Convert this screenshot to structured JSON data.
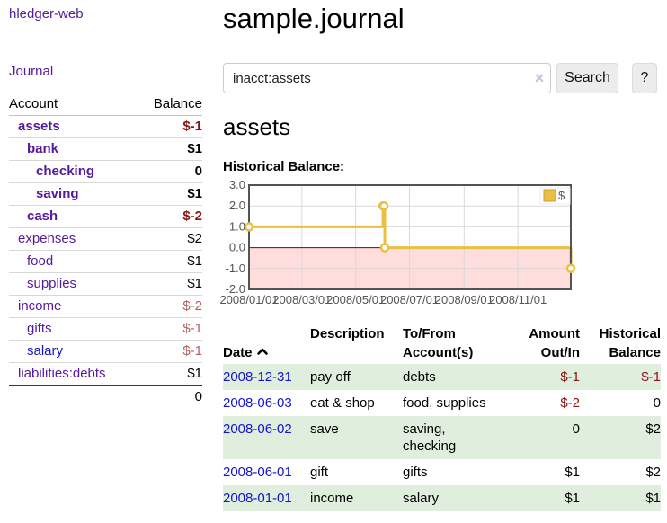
{
  "app": {
    "brand": "hledger-web",
    "nav": {
      "journal": "Journal"
    }
  },
  "sidebar": {
    "headers": {
      "account": "Account",
      "balance": "Balance"
    },
    "accounts": [
      {
        "name": "assets",
        "balance": "$-1"
      },
      {
        "name": "bank",
        "balance": "$1"
      },
      {
        "name": "checking",
        "balance": "0"
      },
      {
        "name": "saving",
        "balance": "$1"
      },
      {
        "name": "cash",
        "balance": "$-2"
      },
      {
        "name": "expenses",
        "balance": "$2"
      },
      {
        "name": "food",
        "balance": "$1"
      },
      {
        "name": "supplies",
        "balance": "$1"
      },
      {
        "name": "income",
        "balance": "$-2"
      },
      {
        "name": "gifts",
        "balance": "$-1"
      },
      {
        "name": "salary",
        "balance": "$-1"
      },
      {
        "name": "liabilities:debts",
        "balance": "$1"
      }
    ],
    "total": "0"
  },
  "main": {
    "title": "sample.journal",
    "search": {
      "value": "inacct:assets",
      "clear_icon": "×",
      "button": "Search",
      "help": "?"
    },
    "account_heading": "assets",
    "chart_label": "Historical Balance:"
  },
  "chart_data": {
    "type": "line",
    "style": "steps",
    "title": "Historical Balance",
    "series": [
      {
        "name": "$",
        "color": "#e9c044",
        "points": [
          [
            "2008-01-01",
            1
          ],
          [
            "2008-06-01",
            2
          ],
          [
            "2008-06-02",
            2
          ],
          [
            "2008-06-03",
            0
          ],
          [
            "2008-12-31",
            -1
          ]
        ]
      }
    ],
    "ylim": [
      -2.0,
      3.0
    ],
    "yticks": [
      "3.0",
      "2.0",
      "1.0",
      "0.0",
      "-1.0",
      "-2.0"
    ],
    "xticks": [
      "2008/01/01",
      "2008/03/01",
      "2008/05/01",
      "2008/07/01",
      "2008/09/01",
      "2008/11/01"
    ],
    "xrange": [
      "2008-01-01",
      "2008-12-31"
    ],
    "legend_position": "top-right",
    "grid": true,
    "negative_region_fill": "#ffdddd",
    "zero_line_color": "#8b0000"
  },
  "register": {
    "headers": {
      "date": "Date",
      "description": "Description",
      "tofrom": "To/From\nAccount(s)",
      "amount": "Amount\nOut/In",
      "balance": "Historical\nBalance"
    },
    "rows": [
      {
        "date": "2008-12-31",
        "description": "pay off",
        "tofrom": "debts",
        "amount": "$-1",
        "balance": "$-1"
      },
      {
        "date": "2008-06-03",
        "description": "eat & shop",
        "tofrom": "food, supplies",
        "amount": "$-2",
        "balance": "0"
      },
      {
        "date": "2008-06-02",
        "description": "save",
        "tofrom": "saving,\nchecking",
        "amount": "0",
        "balance": "$2"
      },
      {
        "date": "2008-06-01",
        "description": "gift",
        "tofrom": "gifts",
        "amount": "$1",
        "balance": "$2"
      },
      {
        "date": "2008-01-01",
        "description": "income",
        "tofrom": "salary",
        "amount": "$1",
        "balance": "$1"
      }
    ]
  },
  "colors": {
    "link_purple": "#551a9b",
    "link_blue": "#1414cc",
    "negative_strong": "#8b1313",
    "negative_muted": "#b06262",
    "row_stripe": "#dfeedd",
    "chart_series": "#e9c044",
    "chart_negative_fill": "#ffdddd",
    "chart_zero_line": "#8b0000",
    "chart_border": "#545454"
  }
}
